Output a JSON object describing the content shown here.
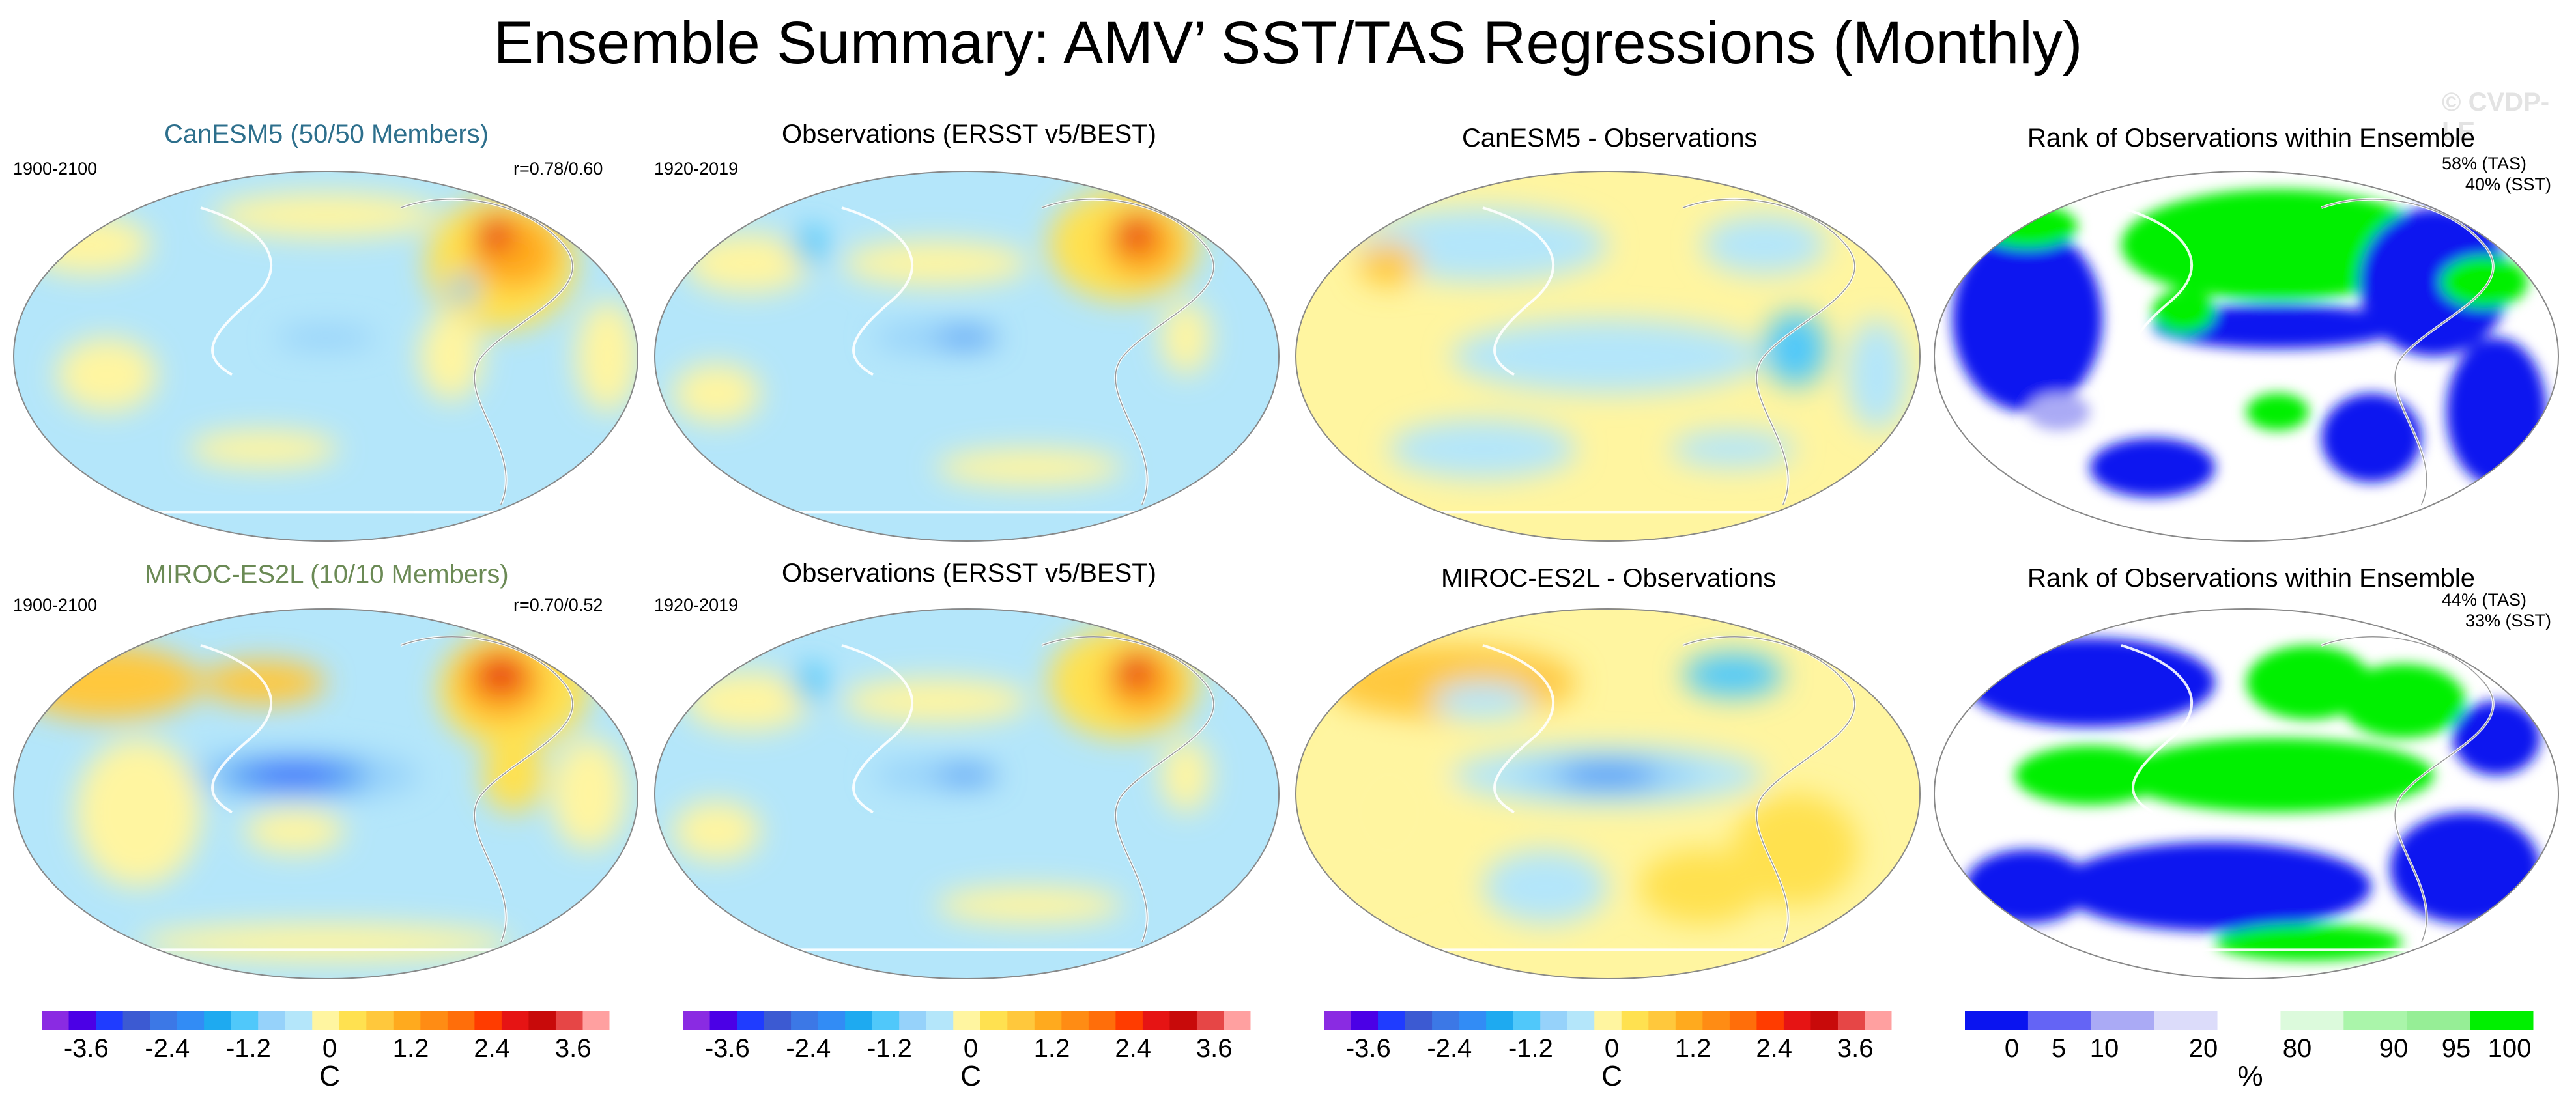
{
  "title": "Ensemble Summary: AMV’ SST/TAS Regressions (Monthly)",
  "watermark": "© CVDP-LE",
  "colors": {
    "model_title_1": "#2d6f8c",
    "model_title_2": "#6b8a55",
    "temp_scale": [
      "#8a2be2",
      "#4b00e6",
      "#1f3cff",
      "#3c5ad2",
      "#3c78e6",
      "#328cf5",
      "#1eaaf0",
      "#50c8fa",
      "#96d2fa",
      "#b4e6fa",
      "#fff5a0",
      "#ffe150",
      "#ffc83c",
      "#ffaa1e",
      "#ff8c14",
      "#ff6e0a",
      "#ff3c00",
      "#e61414",
      "#c80a0a",
      "#e64646",
      "#ffa0a0"
    ],
    "rank_scale": [
      "#0a14f0",
      "#6464f5",
      "#aaaaf5",
      "#dcdcfa",
      "#ffffff",
      "#dcfadc",
      "#aaf5aa",
      "#96ee96",
      "#00f000"
    ]
  },
  "chart_data": [
    {
      "type": "heatmap",
      "panel": "model-1",
      "title": "CanESM5 (50/50 Members)",
      "period": "1900-2100",
      "pattern_correlation": "r=0.78/0.60",
      "colorbar_unit": "C"
    },
    {
      "type": "heatmap",
      "panel": "obs-1",
      "title": "Observations (ERSST v5/BEST)",
      "period": "1920-2019",
      "colorbar_unit": "C"
    },
    {
      "type": "heatmap",
      "panel": "diff-1",
      "title": "CanESM5 - Observations",
      "colorbar_unit": "C"
    },
    {
      "type": "heatmap",
      "panel": "rank-1",
      "title": "Rank of Observations within Ensemble",
      "tas_rank": "58% (TAS)",
      "sst_rank": "40% (SST)",
      "colorbar_unit": "%"
    },
    {
      "type": "heatmap",
      "panel": "model-2",
      "title": "MIROC-ES2L (10/10 Members)",
      "period": "1900-2100",
      "pattern_correlation": "r=0.70/0.52",
      "colorbar_unit": "C"
    },
    {
      "type": "heatmap",
      "panel": "obs-2",
      "title": "Observations (ERSST v5/BEST)",
      "period": "1920-2019",
      "colorbar_unit": "C"
    },
    {
      "type": "heatmap",
      "panel": "diff-2",
      "title": "MIROC-ES2L - Observations",
      "colorbar_unit": "C"
    },
    {
      "type": "heatmap",
      "panel": "rank-2",
      "title": "Rank of Observations within Ensemble",
      "tas_rank": "44% (TAS)",
      "sst_rank": "33% (SST)",
      "colorbar_unit": "%"
    }
  ],
  "colorbars": {
    "temperature": {
      "ticks": [
        "-3.6",
        "-2.4",
        "-1.2",
        "0",
        "1.2",
        "2.4",
        "3.6"
      ],
      "unit": "C",
      "range": [
        -4.2,
        4.2
      ],
      "step": 0.4
    },
    "rank": {
      "ticks": [
        "0",
        "5",
        "10",
        "20",
        "80",
        "90",
        "95",
        "100"
      ],
      "unit": "%"
    }
  }
}
